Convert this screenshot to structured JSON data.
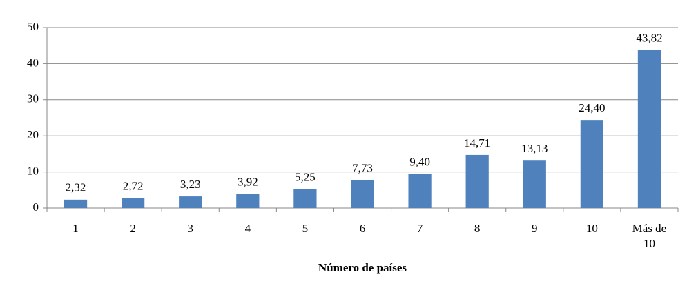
{
  "chart_data": {
    "type": "bar",
    "x_label": "Número de países",
    "categories": [
      "1",
      "2",
      "3",
      "4",
      "5",
      "6",
      "7",
      "8",
      "9",
      "10",
      "Más de 10"
    ],
    "values": [
      2.32,
      2.72,
      3.23,
      3.92,
      5.25,
      7.73,
      9.4,
      14.71,
      13.13,
      24.4,
      43.82
    ],
    "value_labels": [
      "2,32",
      "2,72",
      "3,23",
      "3,92",
      "5,25",
      "7,73",
      "9,40",
      "14,71",
      "13,13",
      "24,40",
      "43,82"
    ],
    "color": "#4f81bd",
    "ylim": [
      0,
      50
    ],
    "yticks": [
      0,
      10,
      20,
      30,
      40,
      50
    ],
    "grid": true
  }
}
